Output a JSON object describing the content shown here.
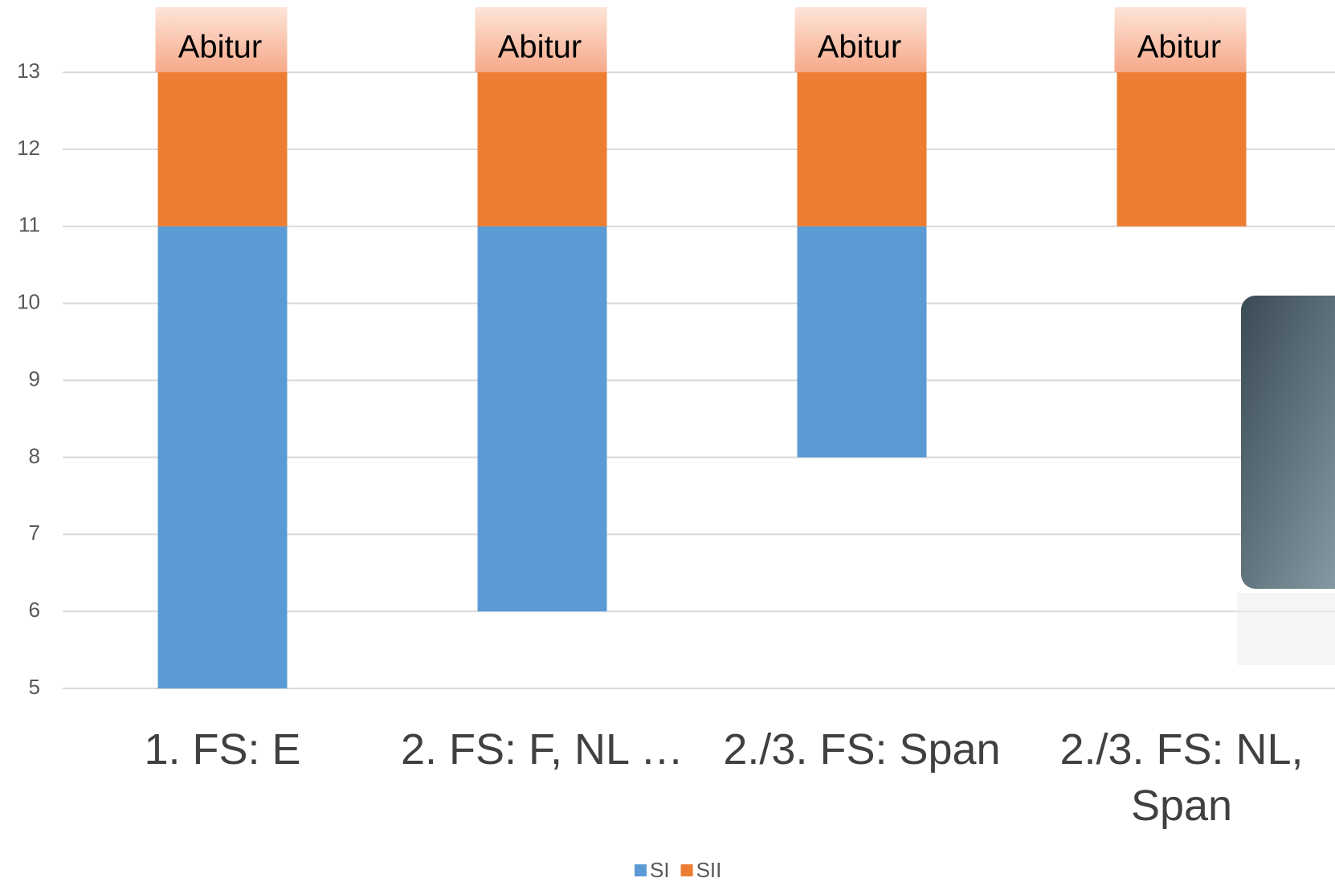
{
  "chart_data": {
    "type": "bar",
    "stacked": true,
    "categories": [
      "1. FS: E",
      "2. FS: F, NL …",
      "2./3. FS: Span",
      "2./3. FS: NL, Span"
    ],
    "series": [
      {
        "name": "SI",
        "color": "#5b9bd5",
        "values": [
          [
            5,
            11
          ],
          [
            6,
            11
          ],
          [
            8,
            11
          ],
          null
        ]
      },
      {
        "name": "SII",
        "color": "#ed7d31",
        "values": [
          [
            11,
            13
          ],
          [
            11,
            13
          ],
          [
            11,
            13
          ],
          [
            11,
            13
          ]
        ]
      }
    ],
    "bar_labels": [
      "Abitur",
      "Abitur",
      "Abitur",
      "Abitur"
    ],
    "ylim": [
      5,
      13
    ],
    "yticks": [
      5,
      6,
      7,
      8,
      9,
      10,
      11,
      12,
      13
    ],
    "grid": true,
    "legend": "bottom"
  }
}
